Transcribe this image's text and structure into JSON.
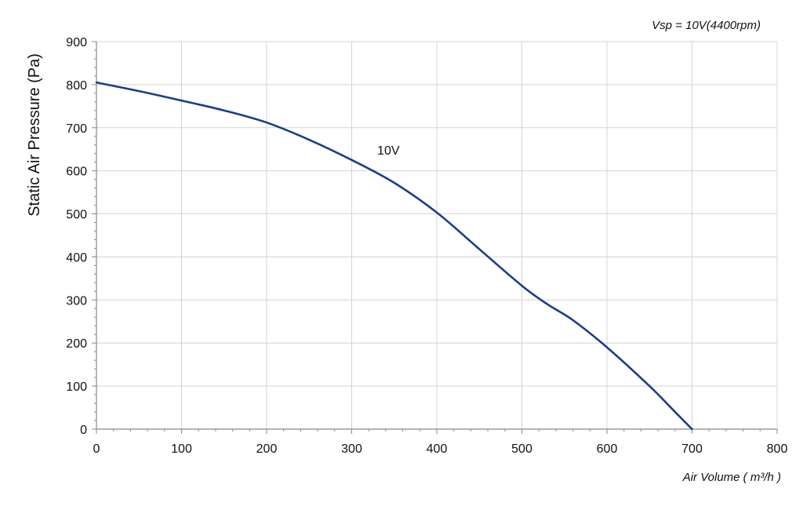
{
  "chart_data": {
    "type": "line",
    "title": "",
    "annotation": "Vsp = 10V(4400rpm)",
    "xlabel": "Air Volume ( m³/h )",
    "ylabel": "Static Air Pressure  (Pa)",
    "xlim": [
      0,
      800
    ],
    "ylim": [
      0,
      900
    ],
    "x_ticks": [
      0,
      100,
      200,
      300,
      400,
      500,
      600,
      700,
      800
    ],
    "y_ticks": [
      0,
      100,
      200,
      300,
      400,
      500,
      600,
      700,
      800,
      900
    ],
    "grid": true,
    "series": [
      {
        "name": "10V",
        "color": "#1a3d8c",
        "x": [
          0,
          50,
          100,
          150,
          200,
          250,
          300,
          350,
          400,
          450,
          500,
          530,
          560,
          600,
          650,
          680,
          700
        ],
        "y": [
          805,
          785,
          763,
          740,
          712,
          672,
          625,
          572,
          503,
          418,
          333,
          290,
          253,
          190,
          100,
          40,
          0
        ]
      }
    ]
  }
}
